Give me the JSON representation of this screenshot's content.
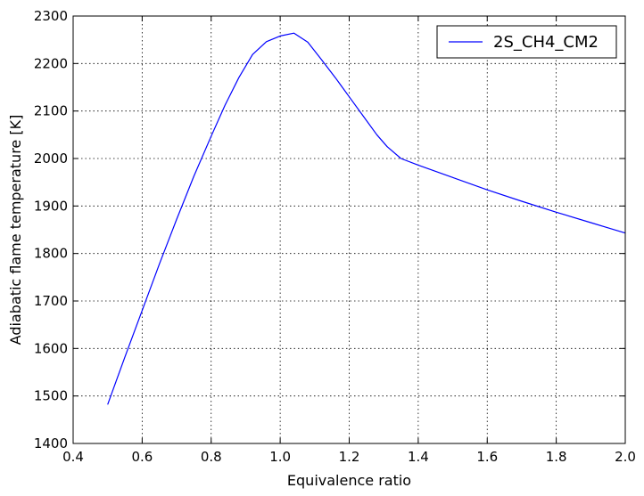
{
  "chart_data": {
    "type": "line",
    "title": "",
    "xlabel": "Equivalence ratio",
    "ylabel": "Adiabatic flame temperature [K]",
    "xlim": [
      0.4,
      2.0
    ],
    "ylim": [
      1400,
      2300
    ],
    "xticks": [
      0.4,
      0.6,
      0.8,
      1.0,
      1.2,
      1.4,
      1.6,
      1.8,
      2.0
    ],
    "xtick_labels": [
      "0.4",
      "0.6",
      "0.8",
      "1.0",
      "1.2",
      "1.4",
      "1.6",
      "1.8",
      "2.0"
    ],
    "yticks": [
      1400,
      1500,
      1600,
      1700,
      1800,
      1900,
      2000,
      2100,
      2200,
      2300
    ],
    "ytick_labels": [
      "1400",
      "1500",
      "1600",
      "1700",
      "1800",
      "1900",
      "2000",
      "2100",
      "2200",
      "2300"
    ],
    "grid": true,
    "legend_position": "top-right",
    "series": [
      {
        "name": "2S_CH4_CM2",
        "color": "#0000ff",
        "x": [
          0.5,
          0.55,
          0.6,
          0.65,
          0.7,
          0.75,
          0.8,
          0.84,
          0.88,
          0.92,
          0.96,
          1.0,
          1.04,
          1.08,
          1.12,
          1.16,
          1.2,
          1.24,
          1.28,
          1.31,
          1.35,
          1.4,
          1.5,
          1.6,
          1.7,
          1.8,
          1.9,
          2.0
        ],
        "y": [
          1482,
          1582,
          1680,
          1778,
          1872,
          1963,
          2047,
          2112,
          2170,
          2219,
          2246,
          2258,
          2264,
          2245,
          2208,
          2170,
          2130,
          2090,
          2050,
          2025,
          2000,
          1986,
          1960,
          1934,
          1910,
          1887,
          1865,
          1843
        ]
      }
    ]
  }
}
